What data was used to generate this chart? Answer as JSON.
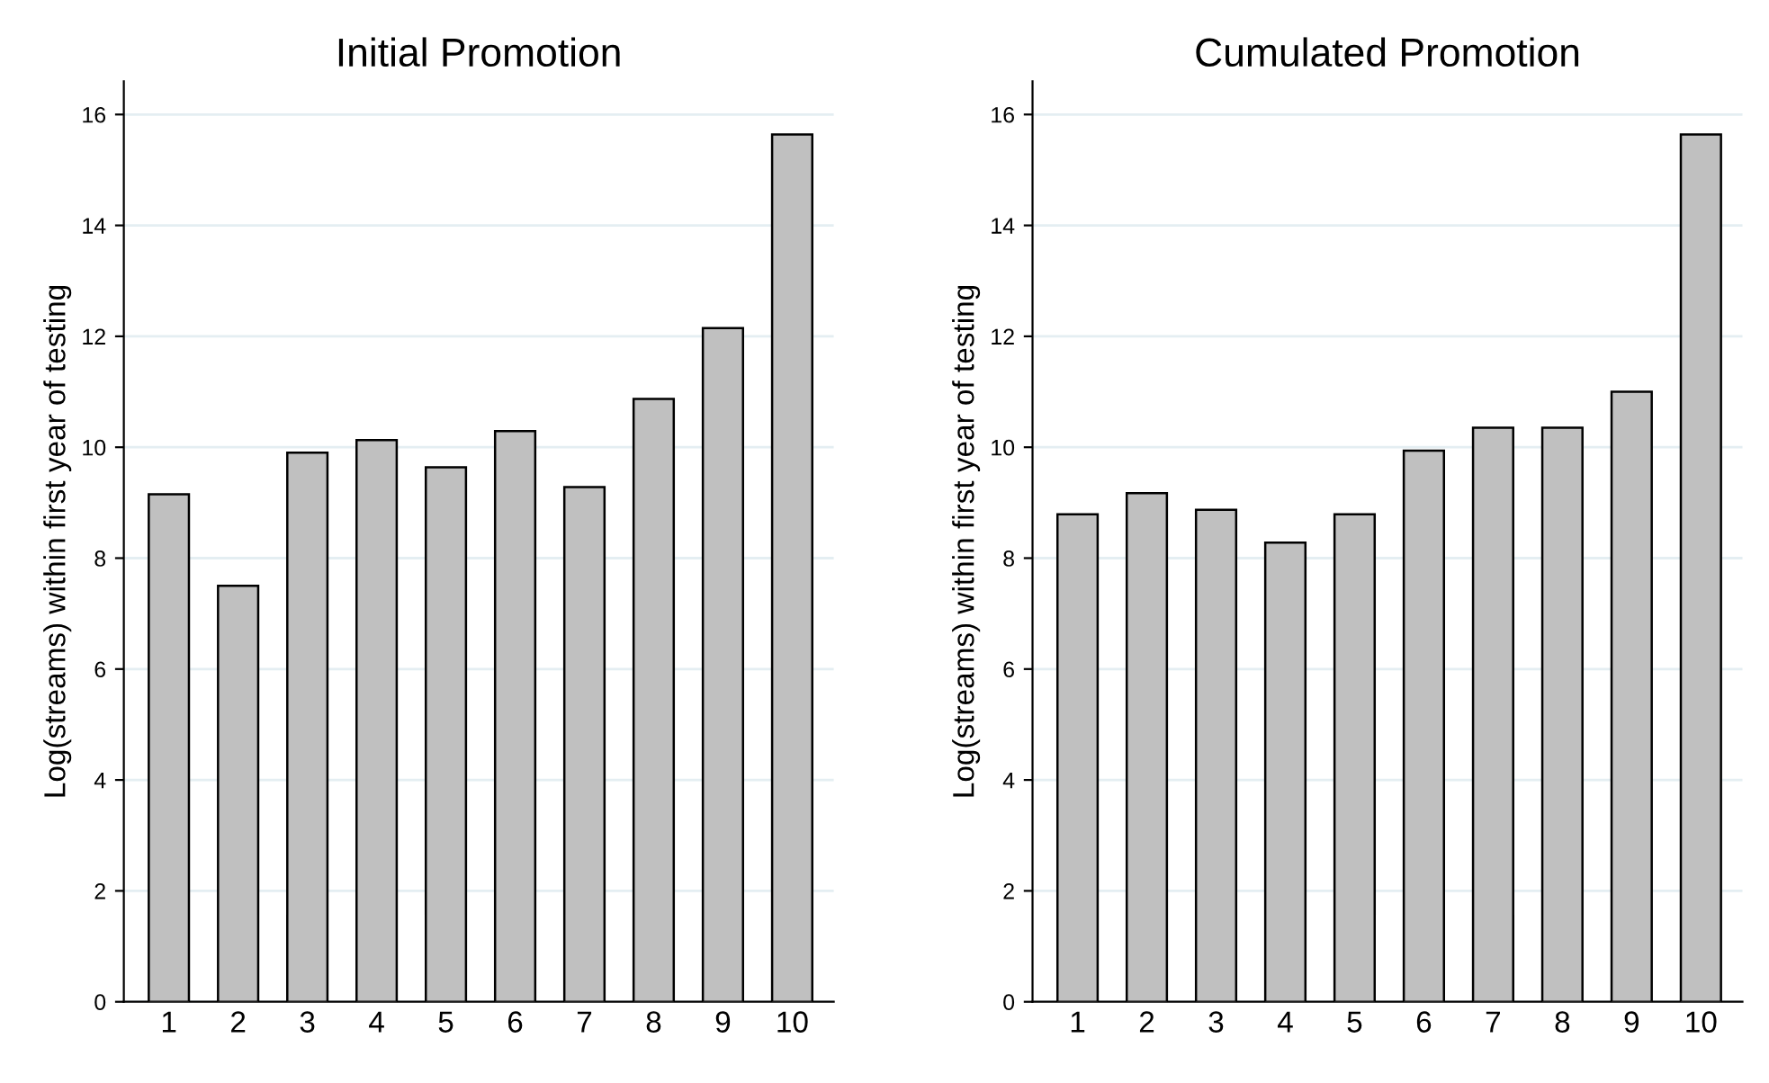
{
  "chart_data": [
    {
      "type": "bar",
      "title": "Initial Promotion",
      "ylabel": "Log(streams) within first year of testing",
      "categories": [
        "1",
        "2",
        "3",
        "4",
        "5",
        "6",
        "7",
        "8",
        "9",
        "10"
      ],
      "values": [
        9.15,
        7.5,
        9.9,
        10.13,
        9.64,
        10.29,
        9.28,
        10.87,
        12.15,
        15.64
      ],
      "color": "#c0c0c0",
      "ylim": [
        0,
        16.6
      ],
      "yticks": [
        0,
        2,
        4,
        6,
        8,
        10,
        12,
        14,
        16
      ],
      "grid": "y"
    },
    {
      "type": "bar",
      "title": "Cumulated Promotion",
      "ylabel": "Log(streams) within first year of testing",
      "categories": [
        "1",
        "2",
        "3",
        "4",
        "5",
        "6",
        "7",
        "8",
        "9",
        "10"
      ],
      "values": [
        8.79,
        9.17,
        8.87,
        8.28,
        8.79,
        9.94,
        10.35,
        10.35,
        11.0,
        15.64
      ],
      "color": "#c0c0c0",
      "ylim": [
        0,
        16.6
      ],
      "yticks": [
        0,
        2,
        4,
        6,
        8,
        10,
        12,
        14,
        16
      ],
      "grid": "y"
    }
  ]
}
